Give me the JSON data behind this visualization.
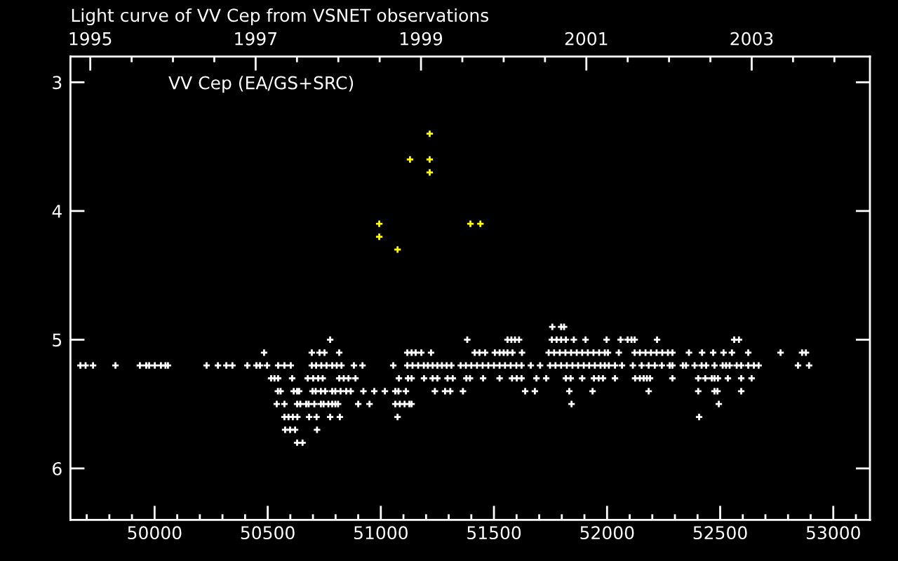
{
  "chart_data": {
    "type": "scatter",
    "title": "Light curve of VV Cep from VSNET observations",
    "annotations": [
      "VV Cep (EA/GS+SRC)"
    ],
    "xlim": [
      49628,
      53162
    ],
    "xticks": [
      {
        "value": 49700,
        "label": null
      },
      {
        "value": 49800,
        "label": null
      },
      {
        "value": 49900,
        "label": null
      },
      50000,
      {
        "value": 50100,
        "label": null
      },
      {
        "value": 50200,
        "label": null
      },
      {
        "value": 50300,
        "label": null
      },
      {
        "value": 50400,
        "label": null
      },
      50500,
      {
        "value": 50600,
        "label": null
      },
      {
        "value": 50700,
        "label": null
      },
      {
        "value": 50800,
        "label": null
      },
      {
        "value": 50900,
        "label": null
      },
      51000,
      {
        "value": 51100,
        "label": null
      },
      {
        "value": 51200,
        "label": null
      },
      {
        "value": 51300,
        "label": null
      },
      {
        "value": 51400,
        "label": null
      },
      51500,
      {
        "value": 51600,
        "label": null
      },
      {
        "value": 51700,
        "label": null
      },
      {
        "value": 51800,
        "label": null
      },
      {
        "value": 51900,
        "label": null
      },
      52000,
      {
        "value": 52100,
        "label": null
      },
      {
        "value": 52200,
        "label": null
      },
      {
        "value": 52300,
        "label": null
      },
      {
        "value": 52400,
        "label": null
      },
      52500,
      {
        "value": 52600,
        "label": null
      },
      {
        "value": 52700,
        "label": null
      },
      {
        "value": 52800,
        "label": null
      },
      {
        "value": 52900,
        "label": null
      },
      53000,
      {
        "value": 53100,
        "label": null
      }
    ],
    "x2lim": [
      1994.76,
      2004.43
    ],
    "x2ticks": [
      1995,
      {
        "value": 1995.5,
        "label": null
      },
      {
        "value": 1996,
        "label": null
      },
      {
        "value": 1996.5,
        "label": null
      },
      1997,
      {
        "value": 1997.5,
        "label": null
      },
      {
        "value": 1998,
        "label": null
      },
      {
        "value": 1998.5,
        "label": null
      },
      1999,
      {
        "value": 1999.5,
        "label": null
      },
      {
        "value": 2000,
        "label": null
      },
      {
        "value": 2000.5,
        "label": null
      },
      2001,
      {
        "value": 2001.5,
        "label": null
      },
      {
        "value": 2002,
        "label": null
      },
      {
        "value": 2002.5,
        "label": null
      },
      2003,
      {
        "value": 2003.5,
        "label": null
      },
      {
        "value": 2004,
        "label": null
      }
    ],
    "ylim": [
      6.4,
      2.8
    ],
    "yticks": [
      3,
      4,
      5,
      6
    ],
    "marker": "cross",
    "series": [
      {
        "color": "#ffffff",
        "x": [
          51758,
          51797,
          51810,
          50776,
          51382,
          51560,
          51577,
          51593,
          51611,
          51756,
          51777,
          51797,
          51818,
          51853,
          51905,
          51998,
          52060,
          52091,
          52108,
          52122,
          52221,
          52562,
          52583,
          50484,
          50695,
          50729,
          50751,
          50816,
          51117,
          51136,
          51154,
          51179,
          51222,
          51415,
          51436,
          51461,
          51504,
          51525,
          51543,
          51560,
          51582,
          51624,
          51742,
          51766,
          51791,
          51816,
          51841,
          51866,
          51890,
          51915,
          51940,
          51965,
          51990,
          52004,
          52052,
          52122,
          52145,
          52170,
          52194,
          52219,
          52244,
          52269,
          52289,
          52362,
          52420,
          52469,
          52515,
          52552,
          52624,
          52767,
          52862,
          52879,
          49672,
          49695,
          49728,
          49827,
          49935,
          49963,
          49976,
          50001,
          50028,
          50048,
          50059,
          50230,
          50280,
          50317,
          50344,
          50410,
          50450,
          50466,
          50497,
          50546,
          50574,
          50602,
          50695,
          50714,
          50737,
          50760,
          50785,
          50805,
          50826,
          50881,
          50919,
          51055,
          51117,
          51140,
          51165,
          51190,
          51208,
          51229,
          51250,
          51270,
          51291,
          51312,
          51353,
          51376,
          51400,
          51425,
          51450,
          51475,
          51500,
          51525,
          51549,
          51574,
          51599,
          51622,
          51663,
          51704,
          51748,
          51772,
          51797,
          51822,
          51847,
          51872,
          51897,
          51921,
          51946,
          51971,
          51990,
          52008,
          52035,
          52066,
          52114,
          52153,
          52184,
          52211,
          52242,
          52277,
          52289,
          52335,
          52349,
          52387,
          52418,
          52438,
          52475,
          52511,
          52526,
          52542,
          52573,
          52593,
          52624,
          52649,
          52670,
          52844,
          52893,
          50515,
          50530,
          50546,
          50608,
          50677,
          50701,
          50723,
          50743,
          50816,
          50836,
          50857,
          50888,
          51080,
          51120,
          51136,
          51191,
          51229,
          51250,
          51295,
          51318,
          51378,
          51394,
          51452,
          51525,
          51580,
          51601,
          51622,
          51688,
          51731,
          51818,
          51839,
          51890,
          51942,
          51963,
          51982,
          52035,
          52124,
          52145,
          52162,
          52176,
          52190,
          52289,
          52403,
          52434,
          52463,
          52475,
          52490,
          52534,
          52593,
          52639,
          50545,
          50557,
          50615,
          50630,
          50639,
          50698,
          50712,
          50735,
          50754,
          50785,
          50799,
          50822,
          50847,
          50867,
          50923,
          50971,
          51018,
          51064,
          51078,
          51111,
          51239,
          51284,
          51307,
          51363,
          51638,
          51681,
          51833,
          51936,
          52184,
          52403,
          52475,
          52488,
          52593,
          50540,
          50574,
          50630,
          50644,
          50670,
          50681,
          50706,
          50735,
          50747,
          50768,
          50785,
          50799,
          50811,
          50900,
          50950,
          51064,
          51084,
          51105,
          51126,
          51136,
          51843,
          52494,
          50574,
          50592,
          50611,
          50631,
          50683,
          50716,
          50776,
          50819,
          51074,
          52407,
          50577,
          50599,
          50621,
          50718,
          50630,
          50654
        ],
        "values": [
          4.9,
          4.9,
          4.9,
          5,
          5,
          5,
          5,
          5,
          5,
          5,
          5,
          5,
          5,
          5,
          5,
          5,
          5,
          5,
          5,
          5,
          5,
          5,
          5,
          5.1,
          5.1,
          5.1,
          5.1,
          5.1,
          5.1,
          5.1,
          5.1,
          5.1,
          5.1,
          5.1,
          5.1,
          5.1,
          5.1,
          5.1,
          5.1,
          5.1,
          5.1,
          5.1,
          5.1,
          5.1,
          5.1,
          5.1,
          5.1,
          5.1,
          5.1,
          5.1,
          5.1,
          5.1,
          5.1,
          5.1,
          5.1,
          5.1,
          5.1,
          5.1,
          5.1,
          5.1,
          5.1,
          5.1,
          5.1,
          5.1,
          5.1,
          5.1,
          5.1,
          5.1,
          5.1,
          5.1,
          5.1,
          5.1,
          5.2,
          5.2,
          5.2,
          5.2,
          5.2,
          5.2,
          5.2,
          5.2,
          5.2,
          5.2,
          5.2,
          5.2,
          5.2,
          5.2,
          5.2,
          5.2,
          5.2,
          5.2,
          5.2,
          5.2,
          5.2,
          5.2,
          5.2,
          5.2,
          5.2,
          5.2,
          5.2,
          5.2,
          5.2,
          5.2,
          5.2,
          5.2,
          5.2,
          5.2,
          5.2,
          5.2,
          5.2,
          5.2,
          5.2,
          5.2,
          5.2,
          5.2,
          5.2,
          5.2,
          5.2,
          5.2,
          5.2,
          5.2,
          5.2,
          5.2,
          5.2,
          5.2,
          5.2,
          5.2,
          5.2,
          5.2,
          5.2,
          5.2,
          5.2,
          5.2,
          5.2,
          5.2,
          5.2,
          5.2,
          5.2,
          5.2,
          5.2,
          5.2,
          5.2,
          5.2,
          5.2,
          5.2,
          5.2,
          5.2,
          5.2,
          5.2,
          5.2,
          5.2,
          5.2,
          5.2,
          5.2,
          5.2,
          5.2,
          5.2,
          5.2,
          5.2,
          5.2,
          5.2,
          5.2,
          5.2,
          5.2,
          5.2,
          5.2,
          5.3,
          5.3,
          5.3,
          5.3,
          5.3,
          5.3,
          5.3,
          5.3,
          5.3,
          5.3,
          5.3,
          5.3,
          5.3,
          5.3,
          5.3,
          5.3,
          5.3,
          5.3,
          5.3,
          5.3,
          5.3,
          5.3,
          5.3,
          5.3,
          5.3,
          5.3,
          5.3,
          5.3,
          5.3,
          5.3,
          5.3,
          5.3,
          5.3,
          5.3,
          5.3,
          5.3,
          5.3,
          5.3,
          5.3,
          5.3,
          5.3,
          5.3,
          5.3,
          5.3,
          5.3,
          5.3,
          5.3,
          5.3,
          5.3,
          5.3,
          5.4,
          5.4,
          5.4,
          5.4,
          5.4,
          5.4,
          5.4,
          5.4,
          5.4,
          5.4,
          5.4,
          5.4,
          5.4,
          5.4,
          5.4,
          5.4,
          5.4,
          5.4,
          5.4,
          5.4,
          5.4,
          5.4,
          5.4,
          5.4,
          5.4,
          5.4,
          5.4,
          5.4,
          5.4,
          5.4,
          5.4,
          5.4,
          5.4,
          5.5,
          5.5,
          5.5,
          5.5,
          5.5,
          5.5,
          5.5,
          5.5,
          5.5,
          5.5,
          5.5,
          5.5,
          5.5,
          5.5,
          5.5,
          5.5,
          5.5,
          5.5,
          5.5,
          5.5,
          5.5,
          5.5,
          5.6,
          5.6,
          5.6,
          5.6,
          5.6,
          5.6,
          5.6,
          5.6,
          5.6,
          5.6,
          5.7,
          5.7,
          5.7,
          5.7,
          5.8,
          5.8
        ]
      },
      {
        "color": "#ffff00",
        "x": [
          50993,
          50993,
          51074,
          51129,
          51216,
          51216,
          51216,
          51396,
          51440
        ],
        "values": [
          4.1,
          4.2,
          4.3,
          3.6,
          3.4,
          3.6,
          3.7,
          4.1,
          4.1
        ]
      }
    ]
  }
}
